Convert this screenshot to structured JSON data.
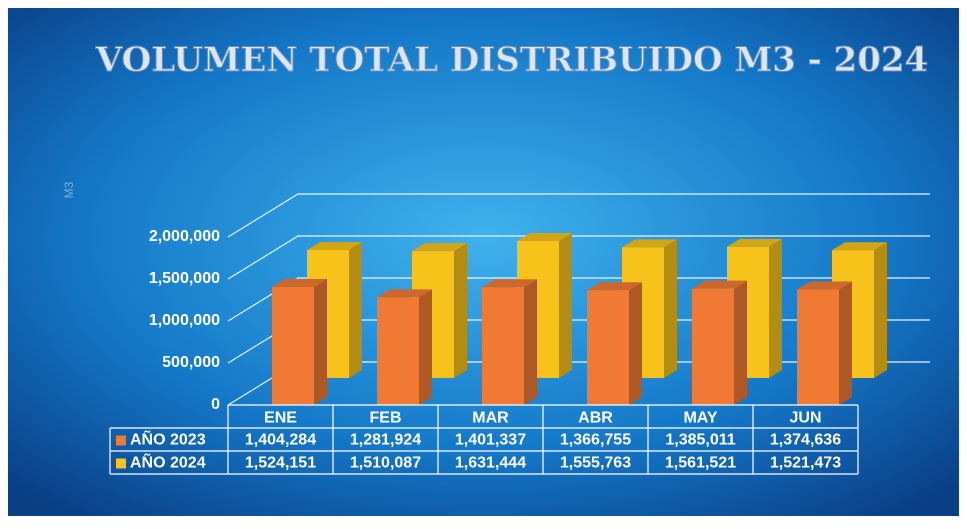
{
  "chart_data": {
    "type": "bar3d",
    "title": "VOLUMEN TOTAL DISTRIBUIDO M3 - 2024",
    "y_label": "M3",
    "categories": [
      "ENE",
      "FEB",
      "MAR",
      "ABR",
      "MAY",
      "JUN"
    ],
    "series": [
      {
        "name": "AÑO 2023",
        "color": "#f07a34",
        "values": [
          1404284,
          1281924,
          1401337,
          1366755,
          1385011,
          1374636
        ],
        "value_labels": [
          "1,404,284",
          "1,281,924",
          "1,401,337",
          "1,366,755",
          "1,385,011",
          "1,374,636"
        ]
      },
      {
        "name": "AÑO 2024",
        "color": "#f7c21a",
        "values": [
          1524151,
          1510087,
          1631444,
          1555763,
          1561521,
          1521473
        ],
        "value_labels": [
          "1,524,151",
          "1,510,087",
          "1,631,444",
          "1,555,763",
          "1,561,521",
          "1,521,473"
        ]
      }
    ],
    "ylim": [
      0,
      2000000
    ],
    "yticks": [
      0,
      {
        "value": 500000,
        "label": "500,000"
      },
      {
        "value": 1000000,
        "label": "1,000,000"
      },
      {
        "value": 1500000,
        "label": "1,500,000"
      },
      {
        "value": 2000000,
        "label": "2,000,000"
      }
    ],
    "grid": true
  }
}
